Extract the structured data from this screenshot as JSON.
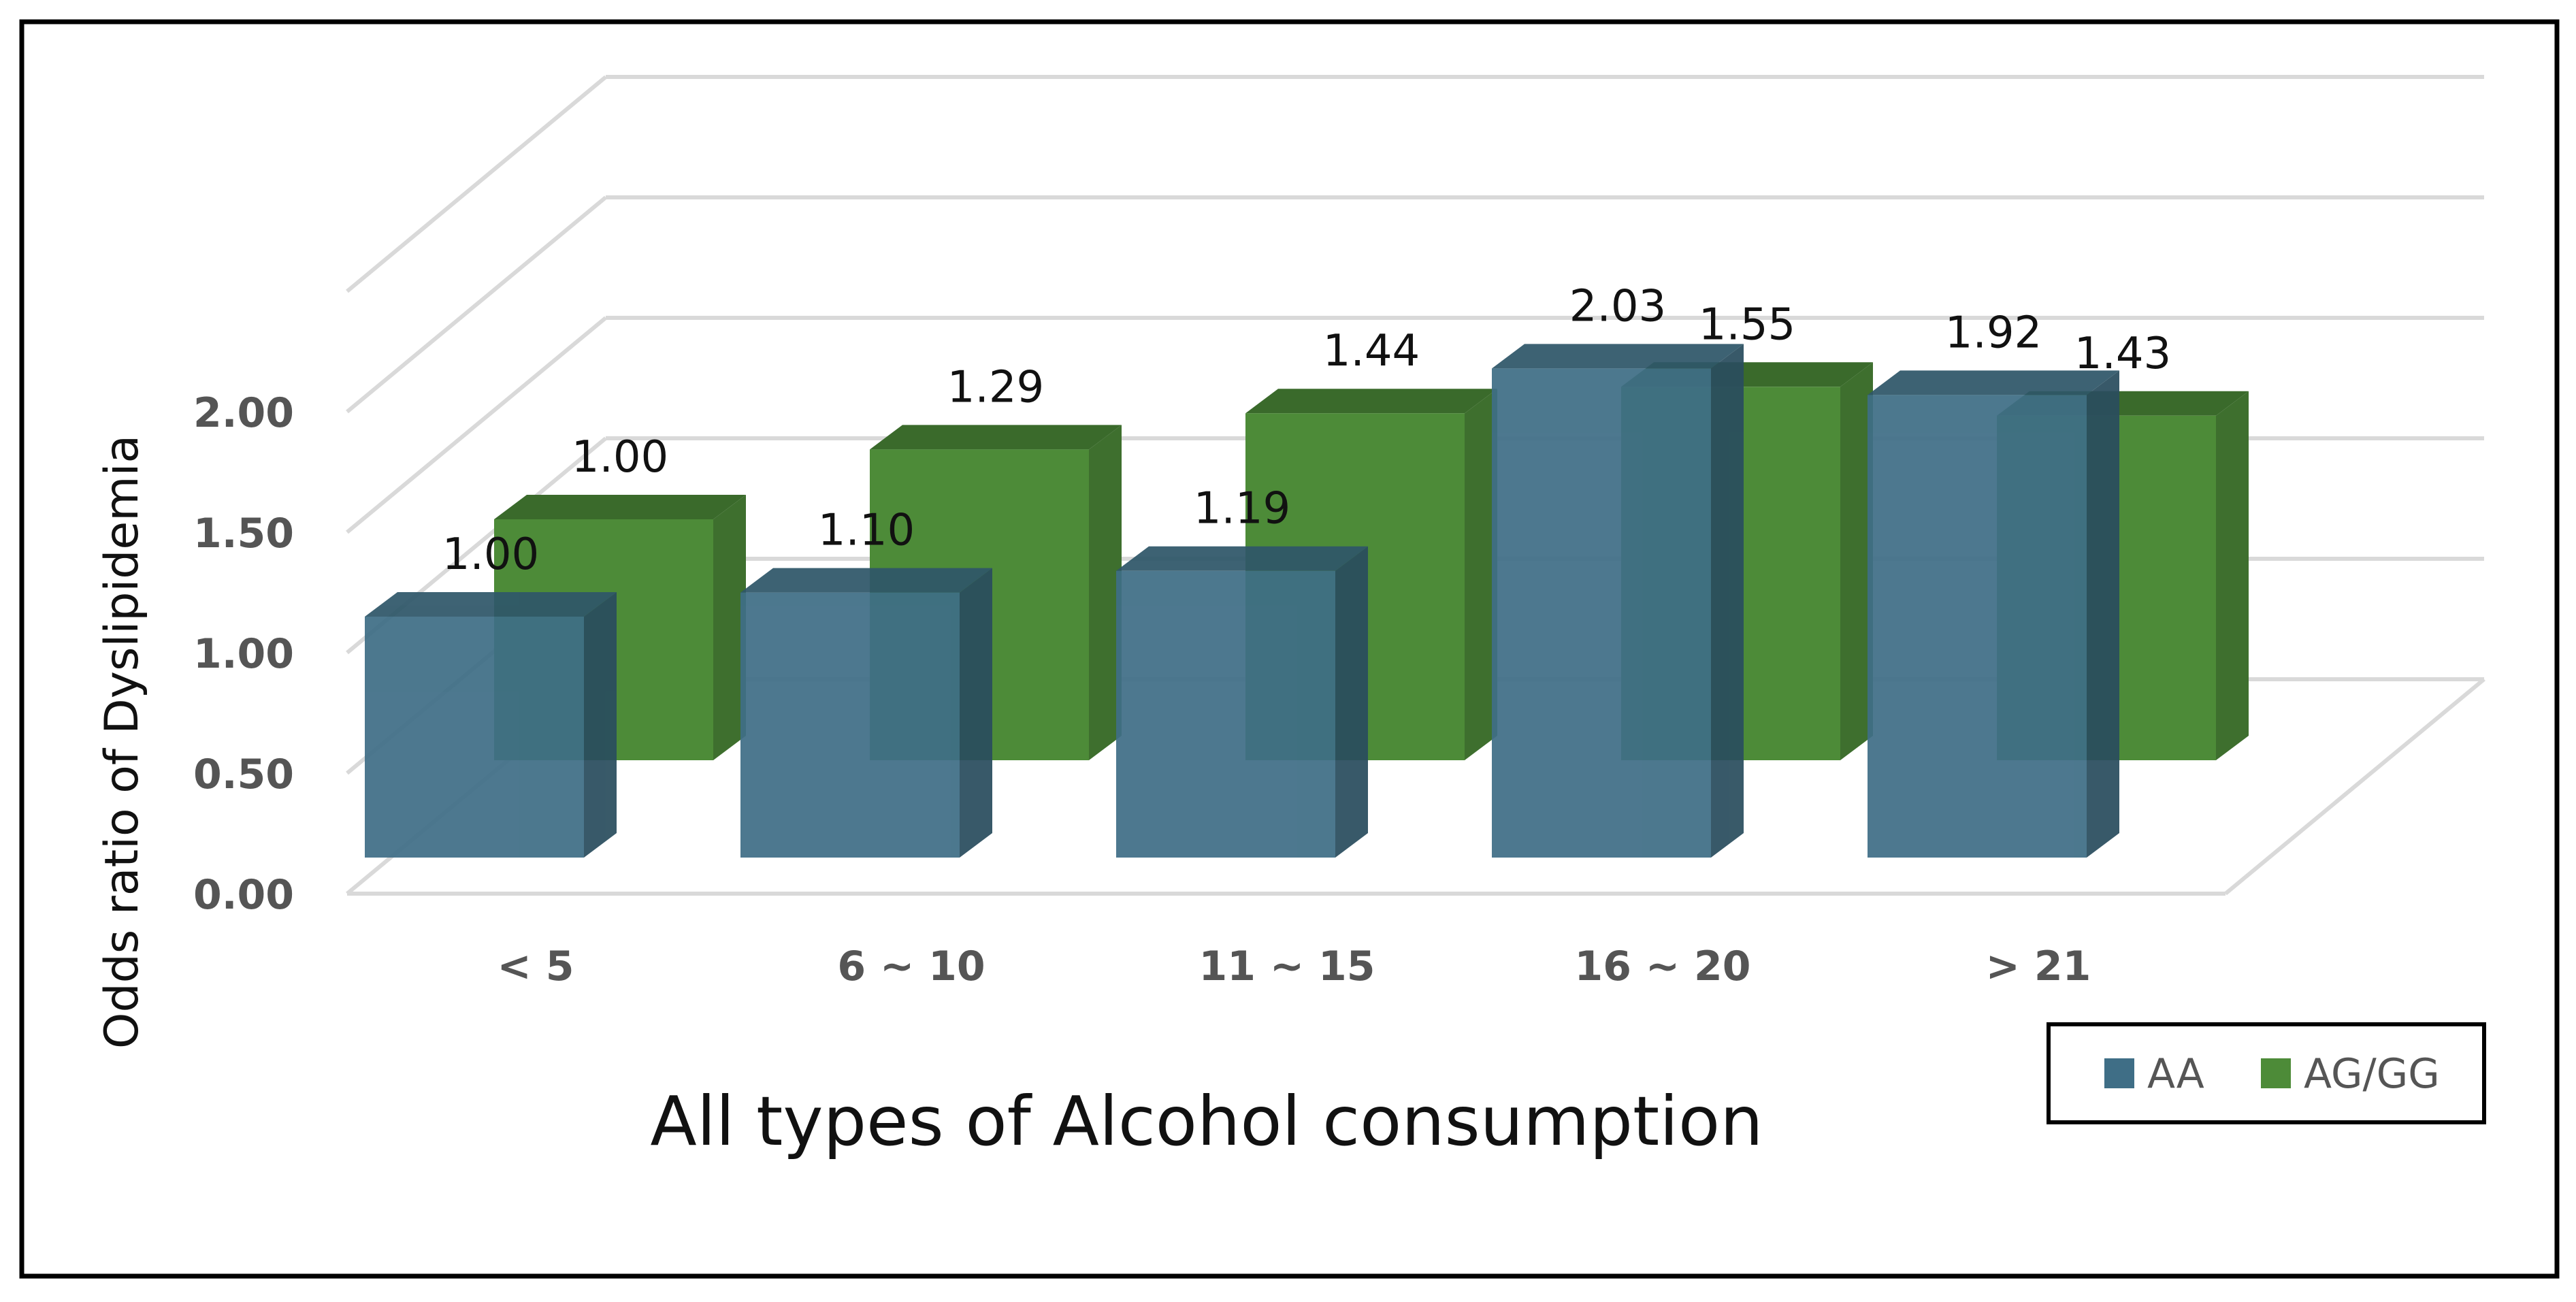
{
  "chart_data": {
    "type": "bar",
    "title": "",
    "xlabel": "All types of Alcohol consumption",
    "ylabel": "Odds ratio of Dyslipidemia",
    "categories": [
      "< 5",
      "6 ~ 10",
      "11 ~ 15",
      "16 ~ 20",
      "> 21"
    ],
    "series": [
      {
        "name": "AA",
        "values": [
          1.0,
          1.1,
          1.19,
          2.03,
          1.92
        ],
        "labels": [
          "1.00",
          "1.10",
          "1.19",
          "2.03",
          "1.92"
        ]
      },
      {
        "name": "AG/GG",
        "values": [
          1.0,
          1.29,
          1.44,
          1.55,
          1.43
        ],
        "labels": [
          "1.00",
          "1.29",
          "1.44",
          "1.55",
          "1.43"
        ]
      }
    ],
    "yticks": [
      "0.00",
      "0.50",
      "1.00",
      "1.50",
      "2.00"
    ],
    "ylim": [
      0,
      2.5
    ],
    "grid": true,
    "legend_position": "bottom-right",
    "style": "3d-clustered"
  },
  "colors": {
    "AA_front": "#3f6e86",
    "AA_top": "#2f5769",
    "AA_side": "#2a4d5e",
    "AGGG_front": "#4d8b38",
    "AGGG_top": "#3a6a2b",
    "AGGG_side": "#3e6f2e",
    "grid": "#d9d9d9",
    "border": "#000000"
  }
}
